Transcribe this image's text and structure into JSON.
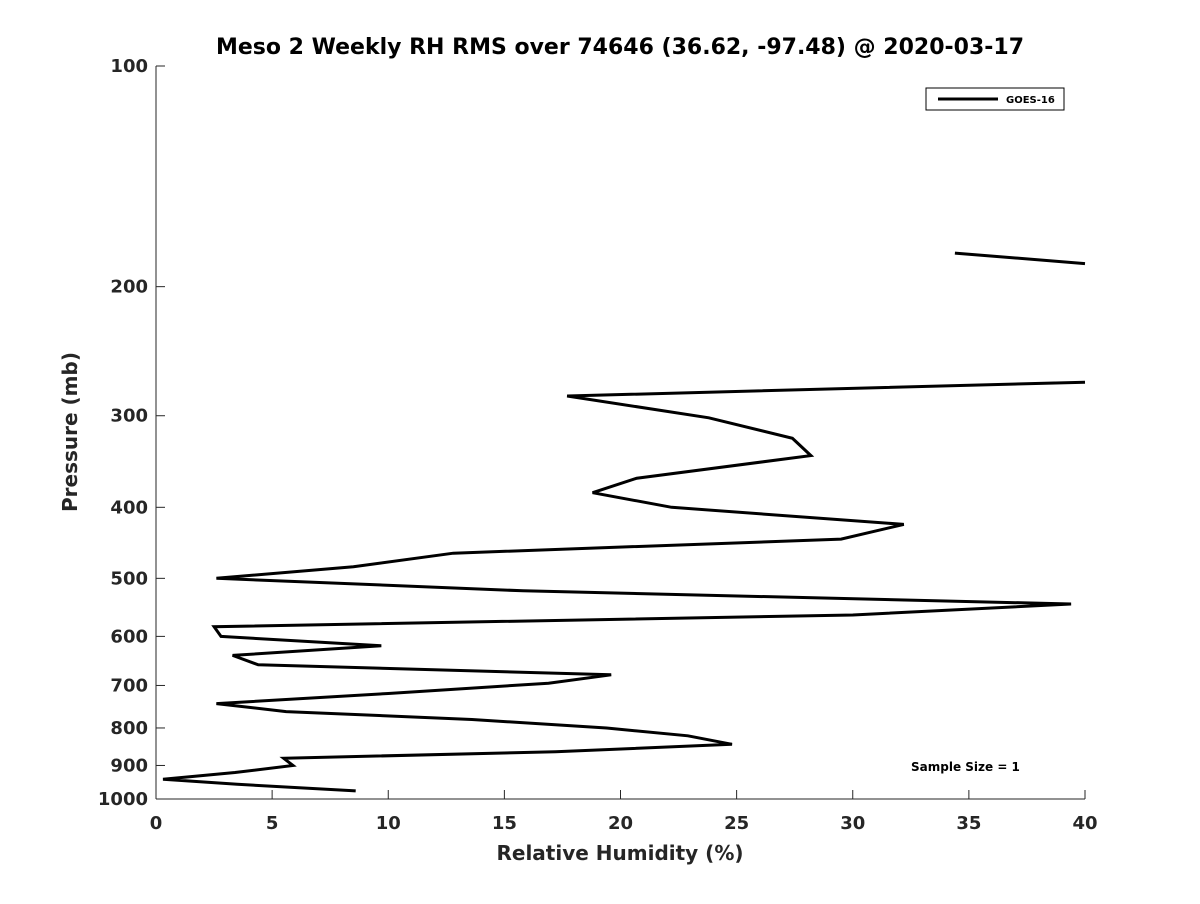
{
  "chart_data": {
    "type": "line",
    "title": "Meso 2 Weekly RH RMS over 74646 (36.62, -97.48) @ 2020-03-17",
    "xlabel": "Relative Humidity (%)",
    "ylabel": "Pressure (mb)",
    "xlim": [
      0,
      40
    ],
    "ylim": [
      100,
      1000
    ],
    "yscale": "log",
    "y_reversed": true,
    "xticks": [
      0,
      5,
      10,
      15,
      20,
      25,
      30,
      35,
      40
    ],
    "yticks": [
      100,
      200,
      300,
      400,
      500,
      600,
      700,
      800,
      900,
      1000
    ],
    "grid": false,
    "legend": {
      "entries": [
        "GOES-16"
      ],
      "placement": "top-right"
    },
    "annotation": "Sample Size = 1",
    "series_color": "#000000",
    "series": [
      {
        "name": "GOES-16",
        "segments": [
          [
            [
              34.4,
              180
            ],
            [
              40.0,
              186
            ]
          ],
          [
            [
              40.0,
              270
            ],
            [
              17.7,
              282
            ],
            [
              23.8,
              302
            ],
            [
              27.4,
              322
            ],
            [
              28.2,
              340
            ],
            [
              20.7,
              365
            ],
            [
              18.8,
              382
            ],
            [
              22.2,
              400
            ],
            [
              32.2,
              422
            ],
            [
              29.5,
              442
            ],
            [
              12.8,
              462
            ],
            [
              8.5,
              482
            ],
            [
              2.6,
              500
            ],
            [
              15.8,
              520
            ],
            [
              39.4,
              542
            ],
            [
              30.0,
              561
            ],
            [
              2.5,
              582
            ],
            [
              2.8,
              600
            ],
            [
              9.7,
              618
            ],
            [
              3.3,
              637
            ],
            [
              4.4,
              656
            ],
            [
              19.6,
              677
            ],
            [
              16.9,
              695
            ],
            [
              10.0,
              718
            ],
            [
              2.6,
              741
            ],
            [
              5.6,
              760
            ],
            [
              13.6,
              779
            ],
            [
              19.4,
              800
            ],
            [
              22.9,
              820
            ],
            [
              24.8,
              842
            ],
            [
              17.2,
              862
            ],
            [
              5.5,
              880
            ],
            [
              5.9,
              900
            ],
            [
              3.4,
              920
            ],
            [
              0.3,
              940
            ],
            [
              3.5,
              955
            ],
            [
              8.6,
              975
            ]
          ]
        ]
      }
    ]
  }
}
